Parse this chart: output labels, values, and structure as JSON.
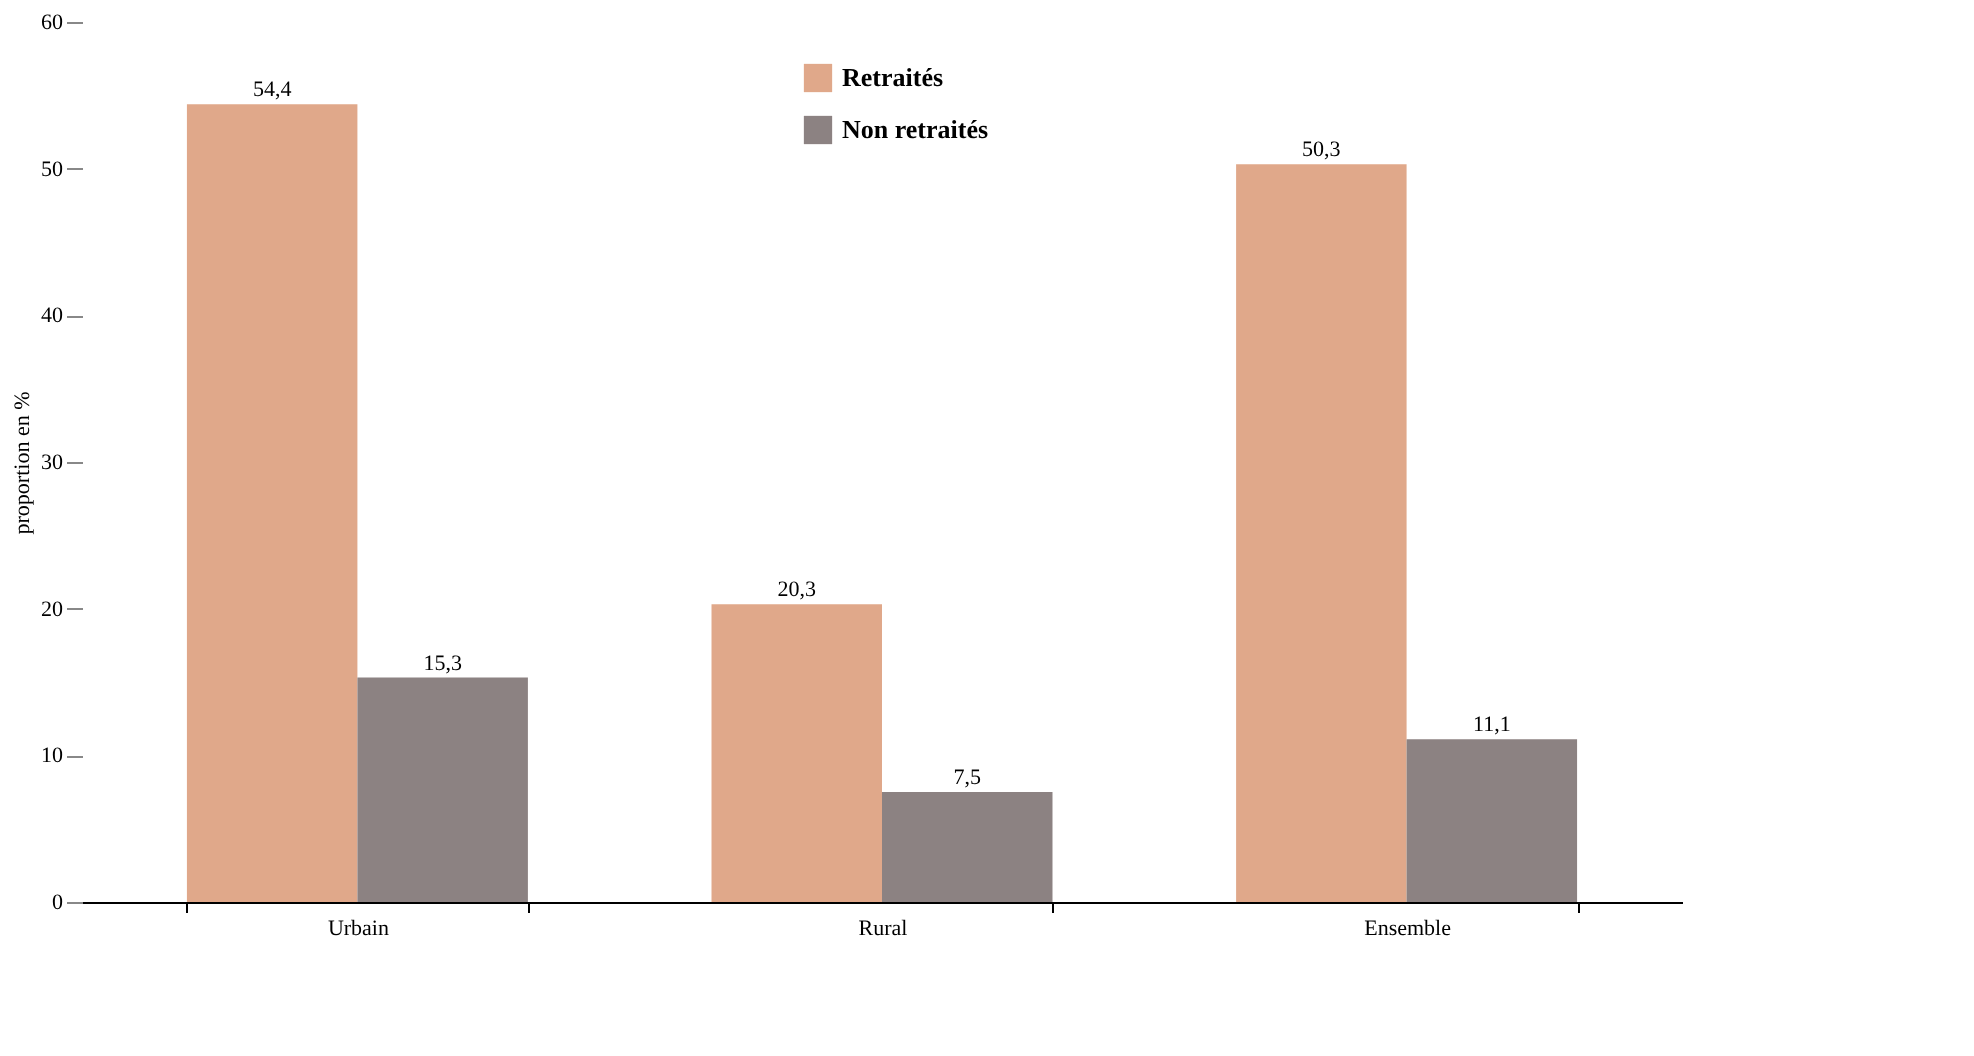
{
  "chart_data": {
    "type": "bar",
    "ylabel": "proportion en %",
    "categories": [
      "Urbain",
      "Rural",
      "Ensemble"
    ],
    "series": [
      {
        "name": "Retraités",
        "color": "#e0a88a",
        "values": [
          54.4,
          20.3,
          50.3
        ],
        "value_labels": [
          "54,4",
          "20,3",
          "50,3"
        ]
      },
      {
        "name": "Non retraités",
        "color": "#8c8282",
        "values": [
          15.3,
          7.5,
          11.1
        ],
        "value_labels": [
          "15,3",
          "7,5",
          "11,1"
        ]
      }
    ],
    "ylim": [
      0,
      60
    ],
    "yticks": [
      0,
      10,
      20,
      30,
      40,
      50,
      60
    ],
    "grid": false,
    "legend": "top"
  }
}
